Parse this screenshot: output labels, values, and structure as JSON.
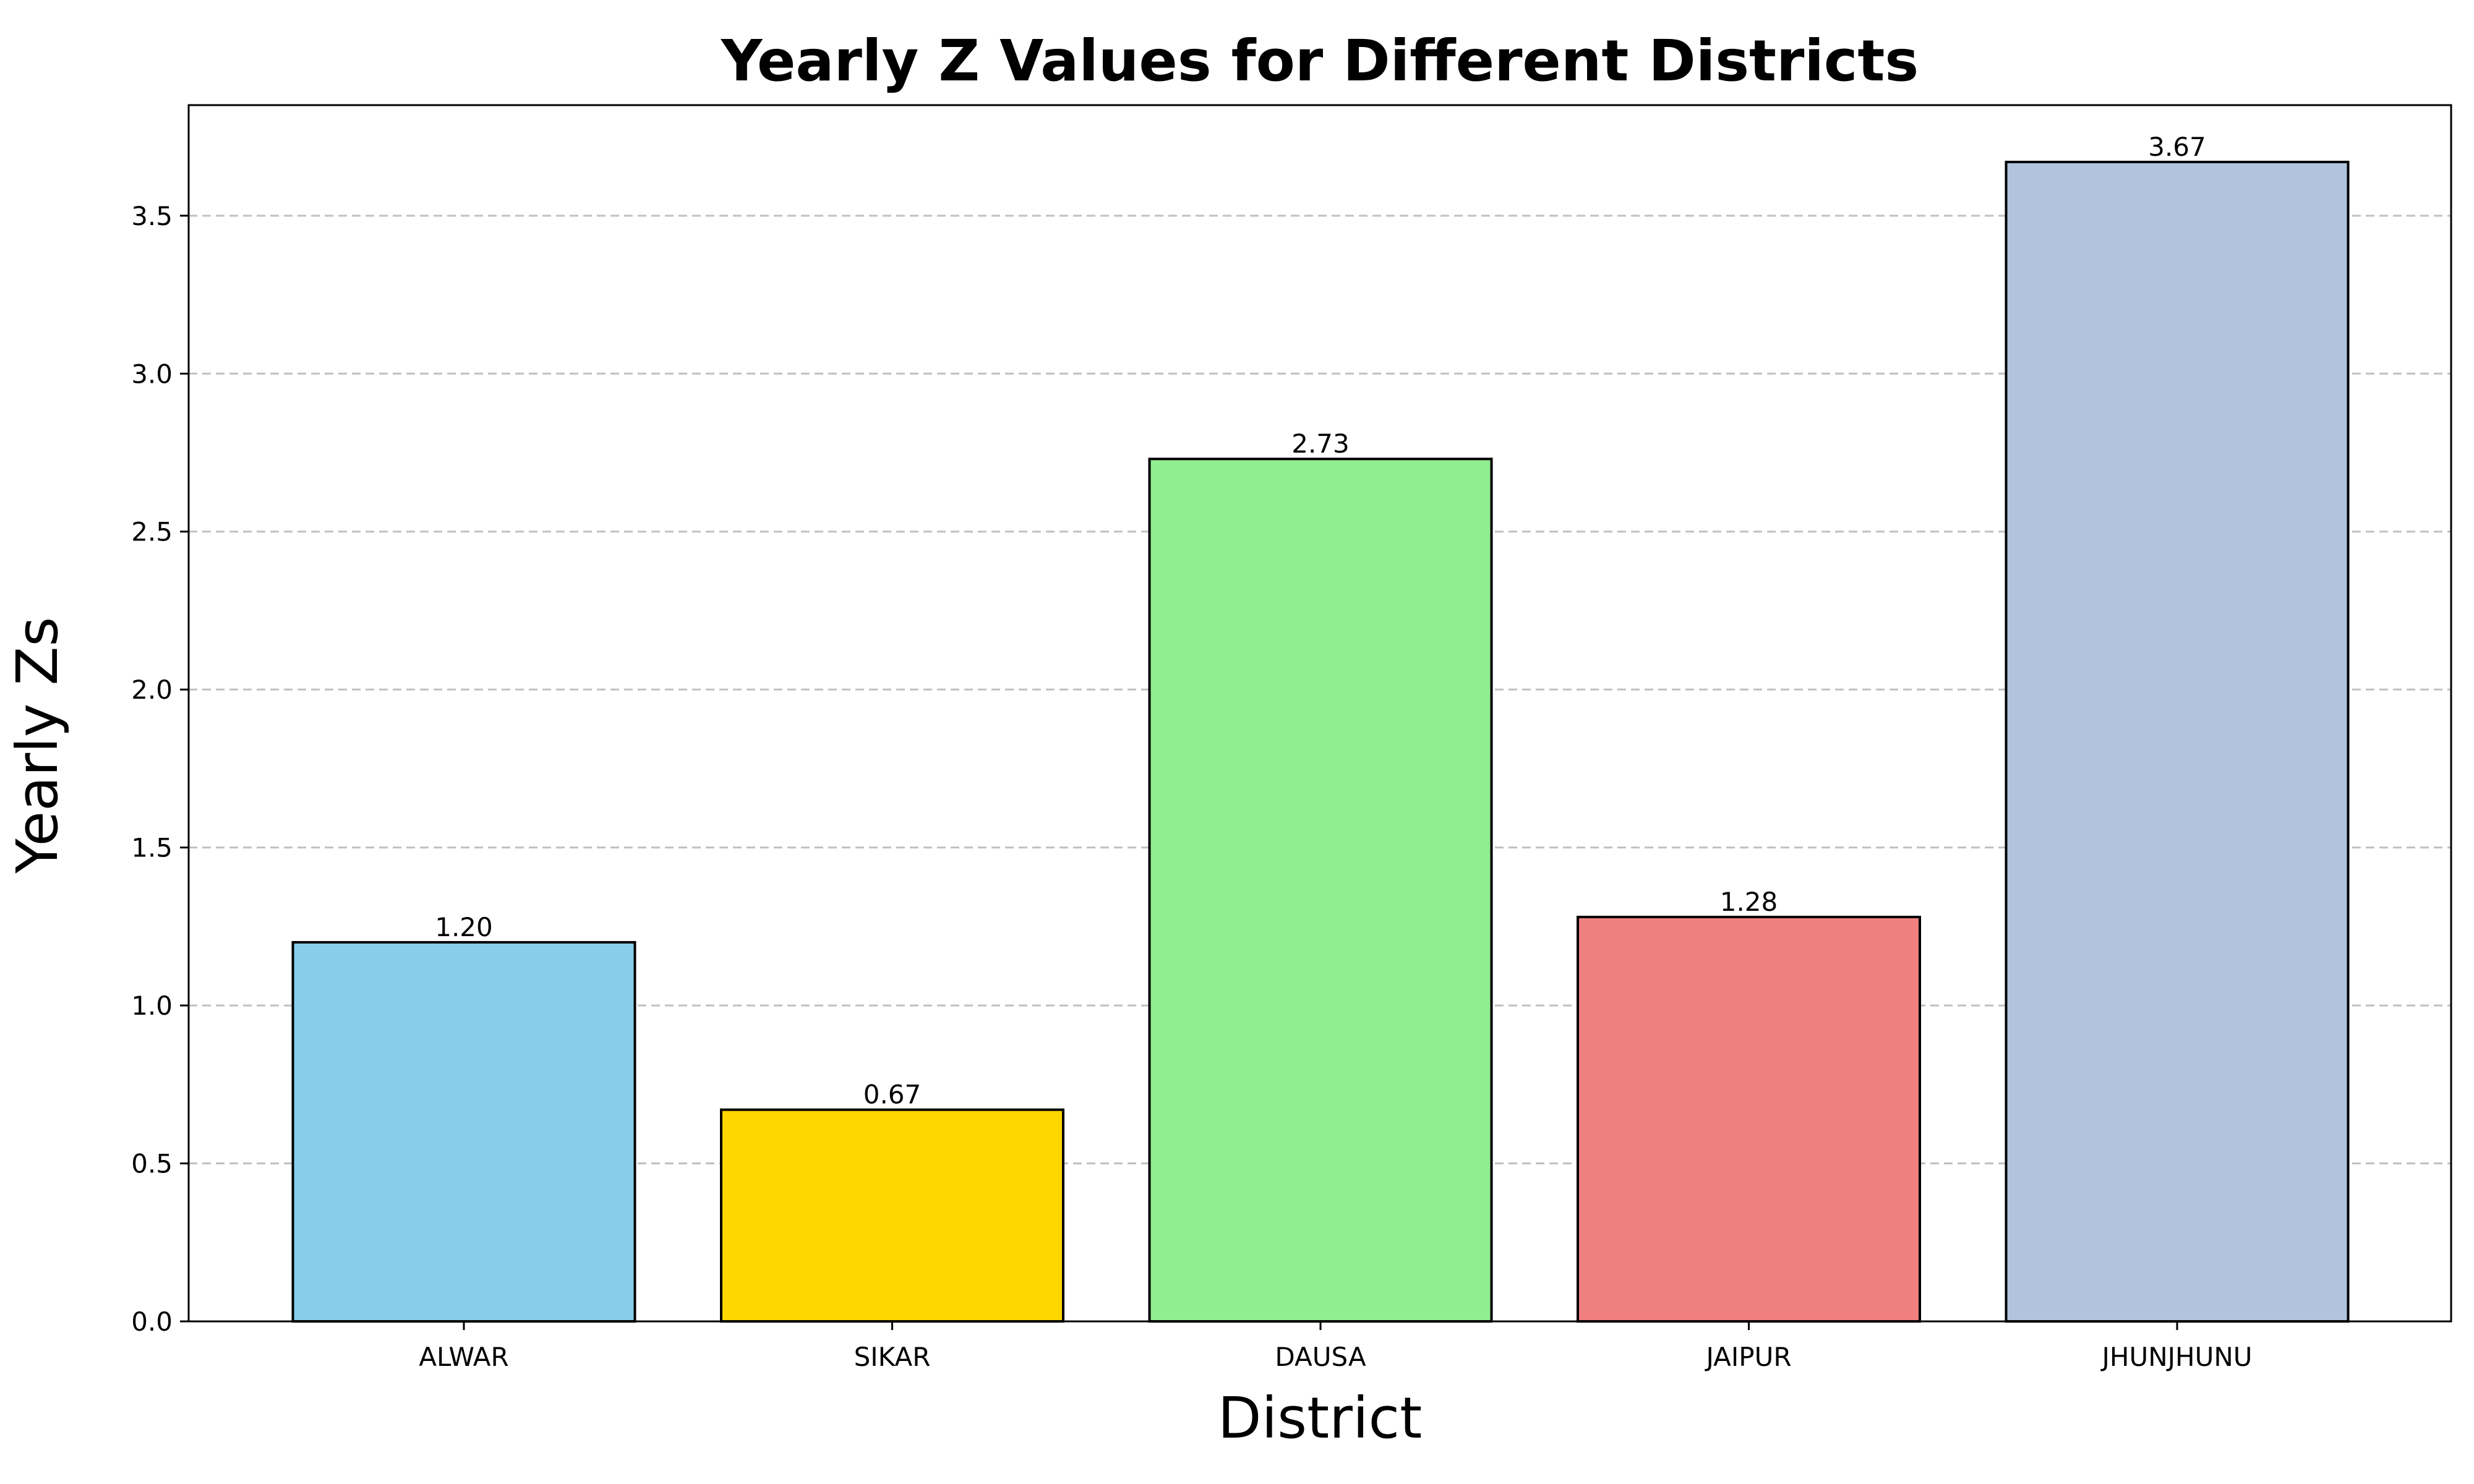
{
  "chart_data": {
    "type": "bar",
    "title": "Yearly Z Values for Different Districts",
    "xlabel": "District",
    "ylabel": "Yearly Zs",
    "categories": [
      "ALWAR",
      "SIKAR",
      "DAUSA",
      "JAIPUR",
      "JHUNJHUNU"
    ],
    "values": [
      1.2,
      0.67,
      2.73,
      1.28,
      3.67
    ],
    "value_labels": [
      "1.20",
      "0.67",
      "2.73",
      "1.28",
      "3.67"
    ],
    "bar_colors": [
      "#87ceeb",
      "#ffd700",
      "#90ee90",
      "#f08080",
      "#b0c4de"
    ],
    "bar_edge_color": "#000000",
    "ylim": [
      0,
      3.85
    ],
    "yticks": [
      0.0,
      0.5,
      1.0,
      1.5,
      2.0,
      2.5,
      3.0,
      3.5
    ],
    "ytick_labels": [
      "0.0",
      "0.5",
      "1.0",
      "1.5",
      "2.0",
      "2.5",
      "3.0",
      "3.5"
    ],
    "grid": "y-axis dashed",
    "grid_color": "#c0c0c0",
    "baseline": "dashed horizontal line at y=0"
  }
}
